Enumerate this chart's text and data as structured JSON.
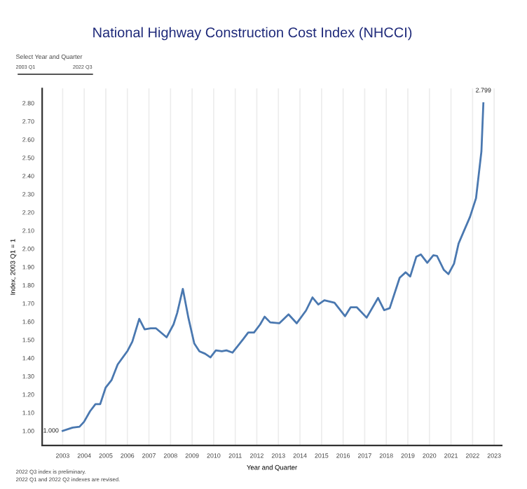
{
  "chart_data": {
    "type": "line",
    "title": "National Highway Construction Cost Index (NHCCI)",
    "xlabel": "Year and Quarter",
    "ylabel": "Index, 2003 Q1 = 1",
    "x": [
      2003.0,
      2003.46,
      2003.78,
      2003.99,
      2004.27,
      2004.52,
      2004.74,
      2004.99,
      2005.27,
      2005.55,
      2006.01,
      2006.23,
      2006.55,
      2006.8,
      2007.08,
      2007.33,
      2007.82,
      2008.14,
      2008.31,
      2008.57,
      2008.83,
      2009.1,
      2009.34,
      2009.6,
      2009.85,
      2010.1,
      2010.38,
      2010.59,
      2010.87,
      2011.13,
      2011.38,
      2011.6,
      2011.87,
      2012.15,
      2012.36,
      2012.62,
      2013.04,
      2013.47,
      2013.85,
      2014.28,
      2014.58,
      2014.85,
      2015.13,
      2015.6,
      2016.09,
      2016.35,
      2016.63,
      2017.09,
      2017.62,
      2017.9,
      2018.16,
      2018.62,
      2018.9,
      2019.11,
      2019.39,
      2019.6,
      2019.9,
      2020.18,
      2020.35,
      2020.67,
      2020.88,
      2021.14,
      2021.35,
      2021.6,
      2021.88,
      2022.16,
      2022.41,
      2022.5
    ],
    "series": [
      {
        "color": "#4a78b0",
        "values": [
          1.0,
          1.018,
          1.023,
          1.05,
          1.108,
          1.147,
          1.147,
          1.237,
          1.28,
          1.365,
          1.44,
          1.49,
          1.615,
          1.558,
          1.563,
          1.563,
          1.514,
          1.585,
          1.648,
          1.78,
          1.62,
          1.48,
          1.437,
          1.424,
          1.404,
          1.442,
          1.437,
          1.442,
          1.43,
          1.468,
          1.506,
          1.54,
          1.54,
          1.584,
          1.627,
          1.596,
          1.591,
          1.64,
          1.591,
          1.661,
          1.733,
          1.694,
          1.717,
          1.704,
          1.63,
          1.679,
          1.679,
          1.622,
          1.73,
          1.663,
          1.674,
          1.841,
          1.871,
          1.848,
          1.956,
          1.969,
          1.923,
          1.964,
          1.961,
          1.884,
          1.861,
          1.918,
          2.028,
          2.098,
          2.175,
          2.278,
          2.535,
          2.799
        ]
      }
    ],
    "xlim": [
      2002.05,
      2023.35
    ],
    "ylim": [
      0.92,
      2.88
    ],
    "xticks": [
      2003,
      2004,
      2005,
      2006,
      2007,
      2008,
      2009,
      2010,
      2011,
      2012,
      2013,
      2014,
      2015,
      2016,
      2017,
      2018,
      2019,
      2020,
      2021,
      2022,
      2023
    ],
    "yticks": [
      {
        "value": 1.0,
        "label": "1.00"
      },
      {
        "value": 1.1,
        "label": "1.10"
      },
      {
        "value": 1.2,
        "label": "1.20"
      },
      {
        "value": 1.3,
        "label": "1.30"
      },
      {
        "value": 1.4,
        "label": "1.40"
      },
      {
        "value": 1.5,
        "label": "1.50"
      },
      {
        "value": 1.6,
        "label": "1.60"
      },
      {
        "value": 1.7,
        "label": "1.70"
      },
      {
        "value": 1.8,
        "label": "1.80"
      },
      {
        "value": 1.9,
        "label": "1.90"
      },
      {
        "value": 2.0,
        "label": "2.00"
      },
      {
        "value": 2.1,
        "label": "2.10"
      },
      {
        "value": 2.2,
        "label": "2.20"
      },
      {
        "value": 2.3,
        "label": "2.30"
      },
      {
        "value": 2.4,
        "label": "2.40"
      },
      {
        "value": 2.5,
        "label": "2.50"
      },
      {
        "value": 2.6,
        "label": "2.60"
      },
      {
        "value": 2.7,
        "label": "2.70"
      },
      {
        "value": 2.8,
        "label": "2.80"
      }
    ],
    "grid": "x",
    "marker": "none",
    "line_style": "solid",
    "legend": false,
    "annotations": [
      {
        "text": "1.000",
        "x": 2003.0,
        "y": 1.0
      },
      {
        "text": "2.799",
        "x": 2022.5,
        "y": 2.799
      },
      "Select Year and Quarter",
      "2003 Q1",
      "2022 Q3",
      "2022 Q3 index is preliminary.",
      "2022 Q1 and 2022 Q2 indexes are revised."
    ]
  }
}
